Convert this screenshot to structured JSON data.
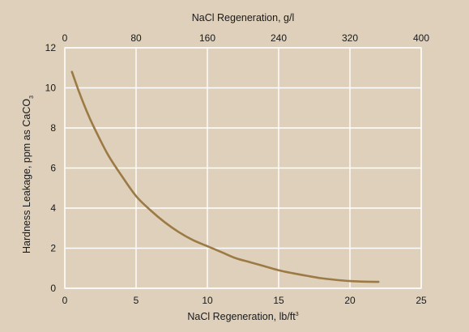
{
  "chart_data": {
    "type": "line",
    "title": "",
    "xlabel": "NaCl Regeneration, lb/ft",
    "xlabel_sup": "3",
    "x2label": "NaCl Regeneration, g/l",
    "ylabel": "Hardness Leakage, ppm as CaCO",
    "ylabel_sub": "3",
    "xlim": [
      0,
      25
    ],
    "x2lim": [
      0,
      400
    ],
    "ylim": [
      0,
      12
    ],
    "xticks": [
      "0",
      "5",
      "10",
      "15",
      "20",
      "25"
    ],
    "x2ticks": [
      "0",
      "80",
      "160",
      "240",
      "320",
      "400"
    ],
    "yticks": [
      "0",
      "2",
      "4",
      "6",
      "8",
      "10",
      "12"
    ],
    "grid": true,
    "colors": {
      "background": "#ded0bb",
      "grid": "#ffffff",
      "line": "#9c7a45"
    },
    "series": [
      {
        "x": [
          0.5,
          1,
          1.5,
          2,
          3,
          4,
          5,
          6,
          7,
          8,
          9,
          10,
          11,
          12,
          13,
          14,
          15,
          16,
          17,
          18,
          19,
          20,
          21,
          22
        ],
        "y": [
          10.8,
          9.8,
          8.9,
          8.1,
          6.7,
          5.6,
          4.6,
          3.9,
          3.3,
          2.8,
          2.4,
          2.1,
          1.8,
          1.5,
          1.3,
          1.1,
          0.9,
          0.75,
          0.62,
          0.5,
          0.42,
          0.36,
          0.33,
          0.32
        ]
      }
    ]
  }
}
